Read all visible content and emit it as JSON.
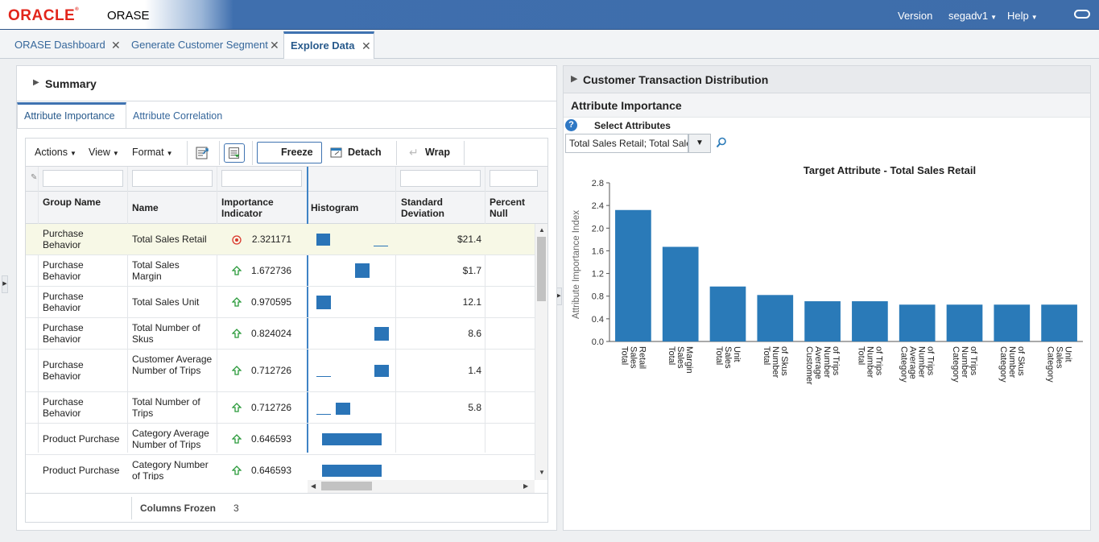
{
  "header": {
    "brand": "ORACLE",
    "app_name": "ORASE",
    "version_label": "Version",
    "user_label": "segadv1",
    "help_label": "Help"
  },
  "tabs": [
    {
      "label": "ORASE Dashboard",
      "active": false
    },
    {
      "label": "Generate Customer Segment",
      "active": false
    },
    {
      "label": "Explore Data",
      "active": true
    }
  ],
  "left": {
    "summary_label": "Summary",
    "subtabs": [
      "Attribute Importance",
      "Attribute Correlation"
    ],
    "toolbar": {
      "actions": "Actions",
      "view": "View",
      "format": "Format",
      "freeze": "Freeze",
      "detach": "Detach",
      "wrap": "Wrap"
    },
    "columns": [
      "Group Name",
      "Name",
      "Importance Indicator",
      "Histogram",
      "Standard Deviation",
      "Percent Null"
    ],
    "rows": [
      {
        "group": "Purchase Behavior",
        "name": "Total Sales Retail",
        "indicator": "target",
        "importance": "2.321171",
        "std_dev": "$21.4",
        "pct_null": ""
      },
      {
        "group": "Purchase Behavior",
        "name": "Total Sales Margin",
        "indicator": "up",
        "importance": "1.672736",
        "std_dev": "$1.7",
        "pct_null": ""
      },
      {
        "group": "Purchase Behavior",
        "name": "Total Sales Unit",
        "indicator": "up",
        "importance": "0.970595",
        "std_dev": "12.1",
        "pct_null": ""
      },
      {
        "group": "Purchase Behavior",
        "name": "Total Number of Skus",
        "indicator": "up",
        "importance": "0.824024",
        "std_dev": "8.6",
        "pct_null": ""
      },
      {
        "group": "Purchase Behavior",
        "name": "Customer Average Number of Trips",
        "indicator": "up",
        "importance": "0.712726",
        "std_dev": "1.4",
        "pct_null": ""
      },
      {
        "group": "Purchase Behavior",
        "name": "Total Number of Trips",
        "indicator": "up",
        "importance": "0.712726",
        "std_dev": "5.8",
        "pct_null": ""
      },
      {
        "group": "Product Purchase",
        "name": "Category Average Number of Trips",
        "indicator": "up",
        "importance": "0.646593",
        "std_dev": "",
        "pct_null": ""
      },
      {
        "group": "Product Purchase",
        "name": "Category Number of Trips",
        "indicator": "up",
        "importance": "0.646593",
        "std_dev": "",
        "pct_null": ""
      }
    ],
    "columns_frozen_label": "Columns Frozen",
    "columns_frozen_value": "3"
  },
  "right": {
    "ctd_label": "Customer Transaction Distribution",
    "ai_label": "Attribute Importance",
    "select_label": "Select Attributes",
    "select_value": "Total Sales Retail; Total Sales Margin"
  },
  "chart_data": {
    "type": "bar",
    "title": "Target Attribute - Total Sales Retail",
    "xlabel": "",
    "ylabel": "Attribute Importance Index",
    "ylim": [
      0,
      2.8
    ],
    "yticks": [
      "0.0",
      "0.4",
      "0.8",
      "1.2",
      "1.6",
      "2.0",
      "2.4",
      "2.8"
    ],
    "categories": [
      "Total Sales Retail",
      "Total Sales Margin",
      "Total Sales Unit",
      "Total Number of Skus",
      "Customer Average Number of Trips",
      "Total Number of Trips",
      "Category Average Number of Trips",
      "Category Number of Trips",
      "Category Number of Skus",
      "Category Sales Unit"
    ],
    "values": [
      2.32,
      1.67,
      0.97,
      0.82,
      0.71,
      0.71,
      0.65,
      0.65,
      0.65,
      0.65
    ],
    "bar_color": "#2a7ab8",
    "grid": false
  },
  "colors": {
    "accent": "#3f73b1",
    "brand_red": "#e2251b",
    "bar": "#2a74b7",
    "up_arrow": "#2a9a3a",
    "target_icon": "#d9362b"
  }
}
